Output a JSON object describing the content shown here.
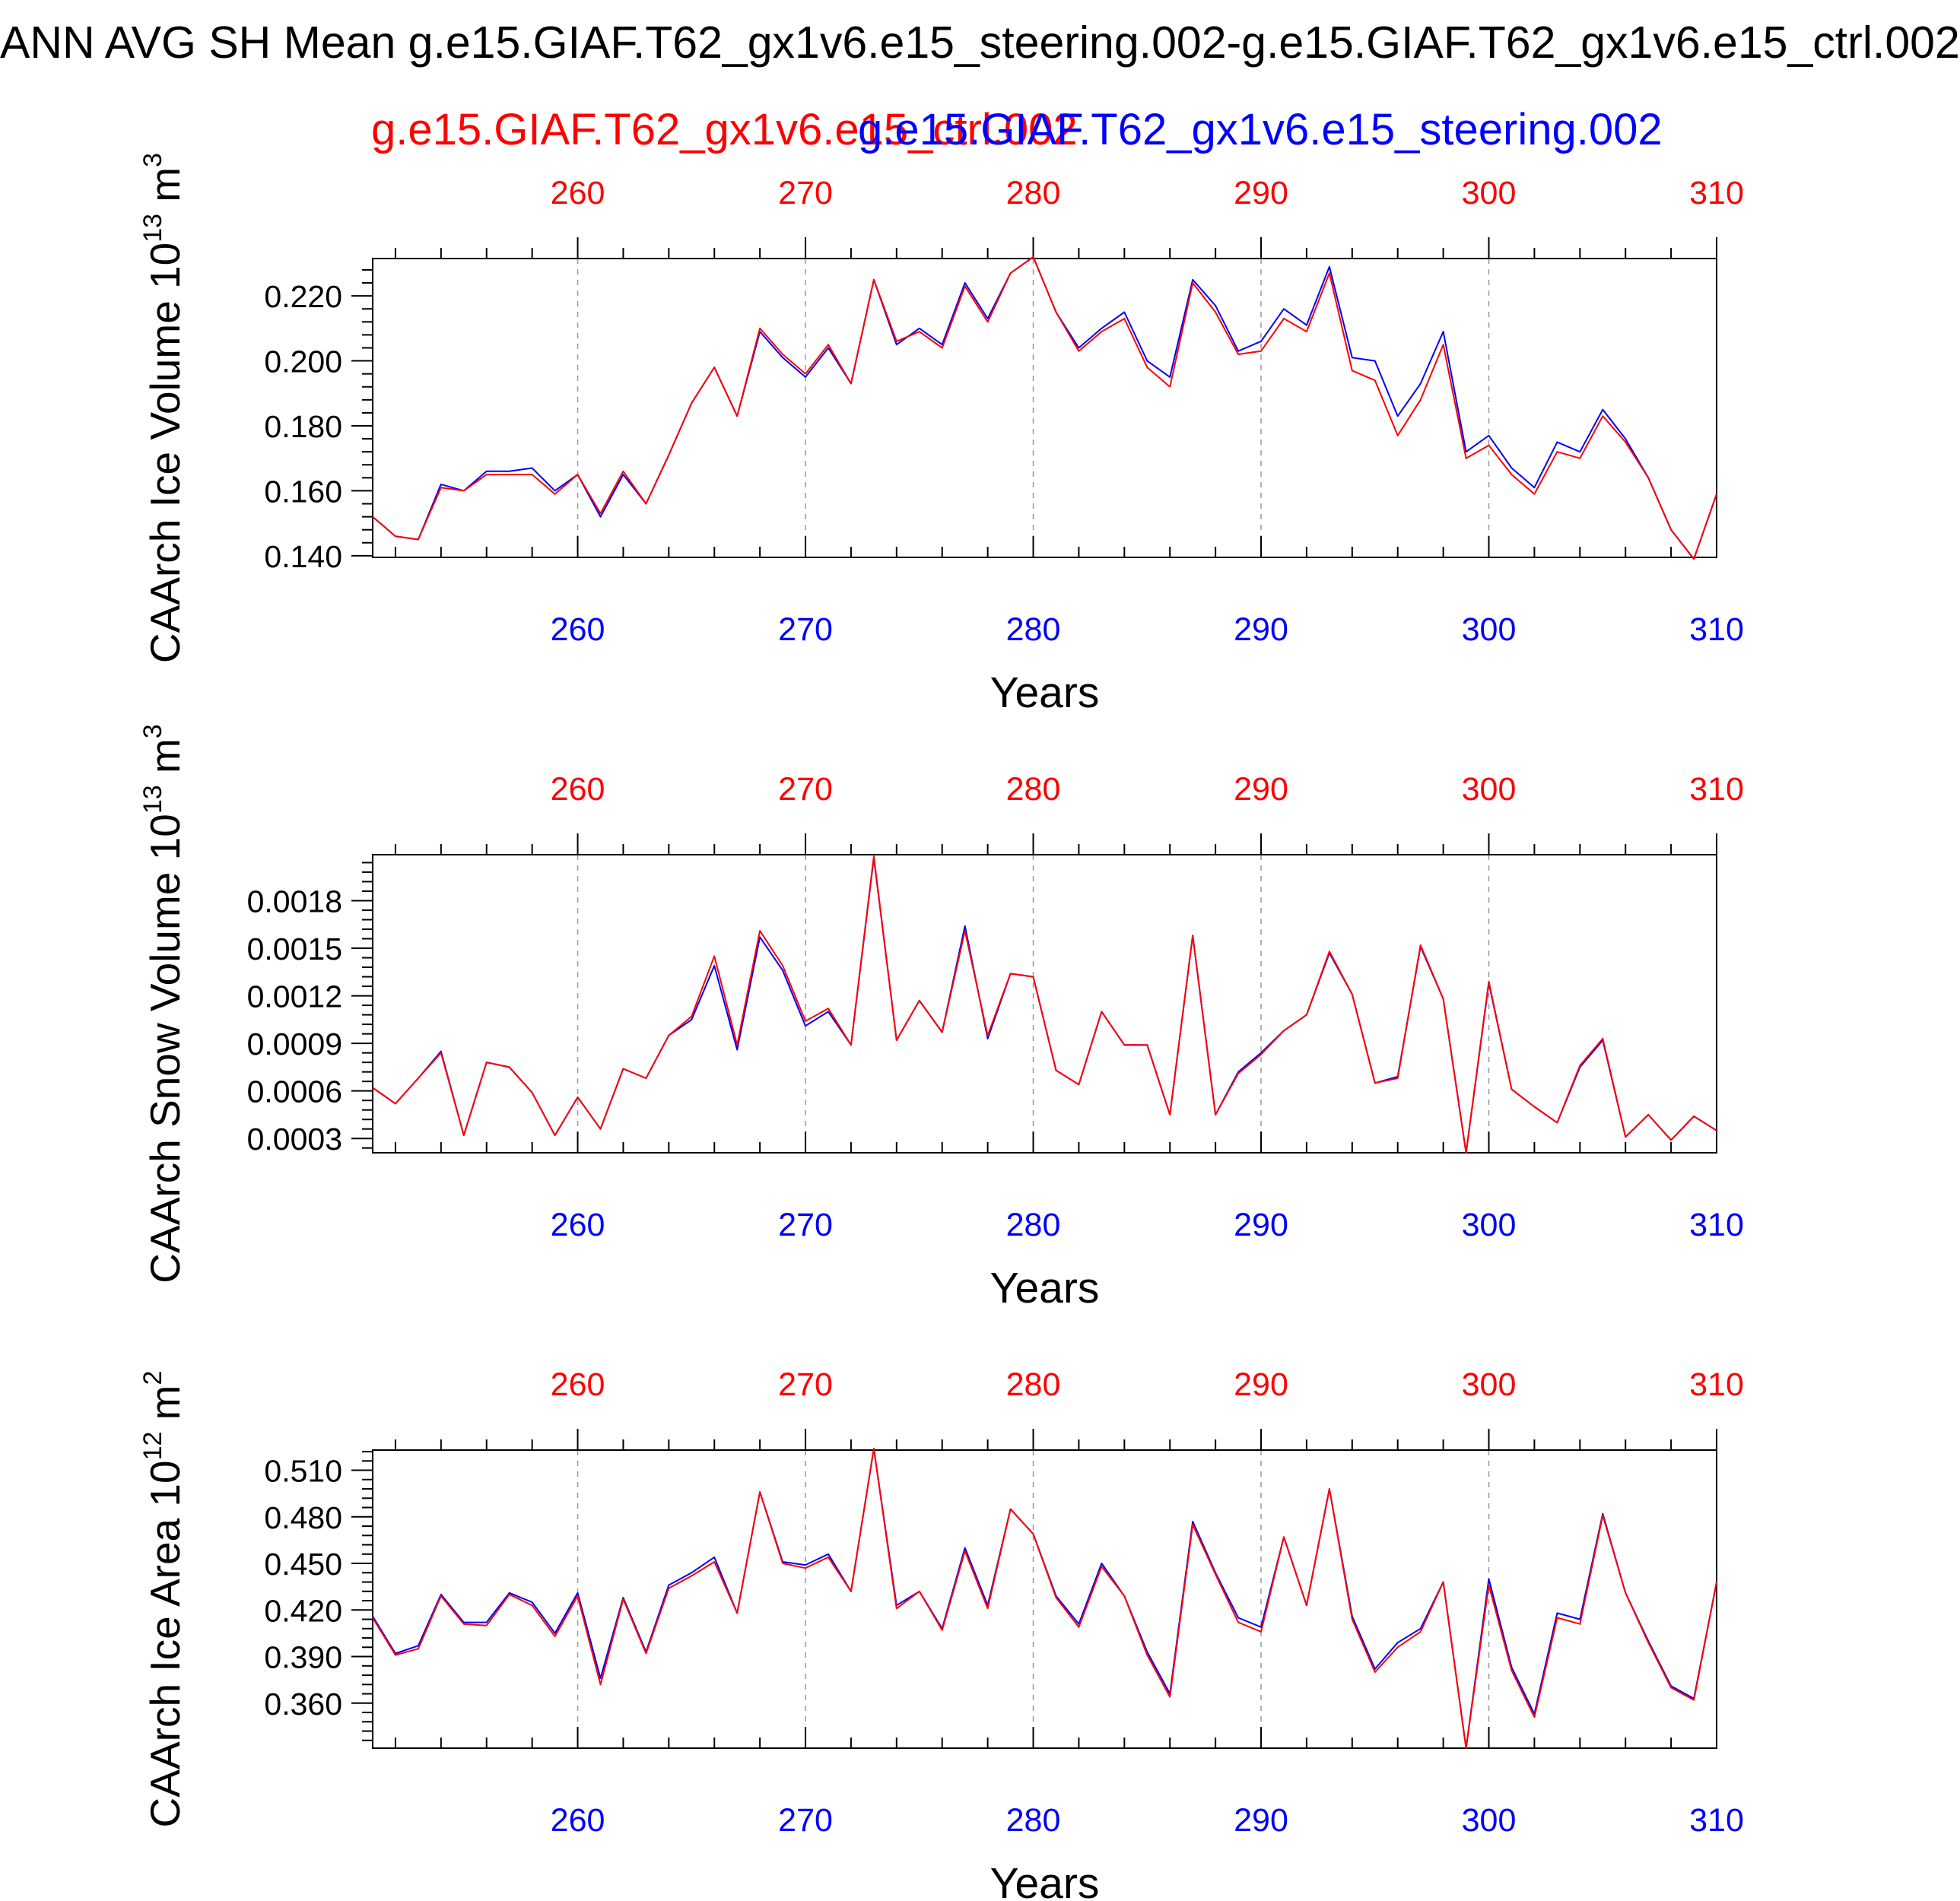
{
  "title": "ANN AVG SH Mean g.e15.GIAF.T62_gx1v6.e15_steering.002-g.e15.GIAF.T62_gx1v6.e15_ctrl.002",
  "legend": {
    "ctrl_label": "g.e15.GIAF.T62_gx1v6.e15_ctrl.002",
    "steering_label": "g.e15.GIAF.T62_gx1v6.e15_steering.002"
  },
  "colors": {
    "ctrl": "#ff0000",
    "steering": "#0000ff",
    "axis": "#000000",
    "grid": "#999999"
  },
  "chart_data": [
    {
      "type": "line",
      "title": "",
      "xlabel": "Years",
      "ylabel_main": "CAArch Ice Volume 10",
      "ylabel_exp": "13",
      "ylabel_unit": "m",
      "ylabel_unit_exp": "3",
      "xlim": [
        251,
        310
      ],
      "ylim": [
        0.1395,
        0.2315
      ],
      "x_ticks": [
        260,
        270,
        280,
        290,
        300,
        310
      ],
      "x_tick_labels": [
        "260",
        "270",
        "280",
        "290",
        "300",
        "310"
      ],
      "y_ticks": [
        0.14,
        0.16,
        0.18,
        0.2,
        0.22
      ],
      "y_tick_labels": [
        "0.140",
        "0.160",
        "0.180",
        "0.200",
        "0.220"
      ],
      "grid": true,
      "x": [
        251,
        252,
        253,
        254,
        255,
        256,
        257,
        258,
        259,
        260,
        261,
        262,
        263,
        264,
        265,
        266,
        267,
        268,
        269,
        270,
        271,
        272,
        273,
        274,
        275,
        276,
        277,
        278,
        279,
        280,
        281,
        282,
        283,
        284,
        285,
        286,
        287,
        288,
        289,
        290,
        291,
        292,
        293,
        294,
        295,
        296,
        297,
        298,
        299,
        300,
        301,
        302,
        303,
        304,
        305,
        306,
        307,
        308,
        309,
        310
      ],
      "series": [
        {
          "name": "g.e15.GIAF.T62_gx1v6.e15_ctrl.002",
          "color": "#ff0000",
          "values": [
            0.152,
            0.146,
            0.145,
            0.161,
            0.16,
            0.165,
            0.165,
            0.165,
            0.159,
            0.165,
            0.153,
            0.166,
            0.156,
            0.171,
            0.187,
            0.198,
            0.183,
            0.21,
            0.202,
            0.196,
            0.205,
            0.193,
            0.225,
            0.206,
            0.209,
            0.204,
            0.223,
            0.212,
            0.227,
            0.232,
            0.215,
            0.203,
            0.209,
            0.213,
            0.198,
            0.192,
            0.224,
            0.215,
            0.202,
            0.203,
            0.213,
            0.209,
            0.227,
            0.197,
            0.194,
            0.177,
            0.188,
            0.205,
            0.17,
            0.174,
            0.165,
            0.159,
            0.172,
            0.17,
            0.183,
            0.175,
            0.164,
            0.148,
            0.139,
            0.159
          ]
        },
        {
          "name": "g.e15.GIAF.T62_gx1v6.e15_steering.002",
          "color": "#0000ff",
          "values": [
            0.152,
            0.146,
            0.145,
            0.162,
            0.16,
            0.166,
            0.166,
            0.167,
            0.16,
            0.165,
            0.152,
            0.165,
            0.156,
            0.171,
            0.187,
            0.198,
            0.183,
            0.209,
            0.201,
            0.195,
            0.204,
            0.193,
            0.225,
            0.205,
            0.21,
            0.205,
            0.224,
            0.213,
            0.227,
            0.232,
            0.215,
            0.204,
            0.21,
            0.215,
            0.2,
            0.195,
            0.225,
            0.217,
            0.203,
            0.206,
            0.216,
            0.211,
            0.229,
            0.201,
            0.2,
            0.183,
            0.193,
            0.209,
            0.172,
            0.177,
            0.167,
            0.161,
            0.175,
            0.172,
            0.185,
            0.176,
            0.164,
            0.148,
            0.139,
            0.159
          ]
        }
      ]
    },
    {
      "type": "line",
      "title": "",
      "xlabel": "Years",
      "ylabel_main": "CAArch Snow Volume 10",
      "ylabel_exp": "13",
      "ylabel_unit": "m",
      "ylabel_unit_exp": "3",
      "xlim": [
        251,
        310
      ],
      "ylim": [
        0.00021,
        0.00209
      ],
      "x_ticks": [
        260,
        270,
        280,
        290,
        300,
        310
      ],
      "x_tick_labels": [
        "260",
        "270",
        "280",
        "290",
        "300",
        "310"
      ],
      "y_ticks": [
        0.0003,
        0.0006,
        0.0009,
        0.0012,
        0.0015,
        0.0018
      ],
      "y_tick_labels": [
        "0.0003",
        "0.0006",
        "0.0009",
        "0.0012",
        "0.0015",
        "0.0018"
      ],
      "grid": true,
      "x": [
        251,
        252,
        253,
        254,
        255,
        256,
        257,
        258,
        259,
        260,
        261,
        262,
        263,
        264,
        265,
        266,
        267,
        268,
        269,
        270,
        271,
        272,
        273,
        274,
        275,
        276,
        277,
        278,
        279,
        280,
        281,
        282,
        283,
        284,
        285,
        286,
        287,
        288,
        289,
        290,
        291,
        292,
        293,
        294,
        295,
        296,
        297,
        298,
        299,
        300,
        301,
        302,
        303,
        304,
        305,
        306,
        307,
        308,
        309,
        310
      ],
      "series": [
        {
          "name": "g.e15.GIAF.T62_gx1v6.e15_ctrl.002",
          "color": "#ff0000",
          "values": [
            0.00062,
            0.00052,
            0.00068,
            0.00084,
            0.00032,
            0.00078,
            0.00075,
            0.00059,
            0.00032,
            0.00056,
            0.00036,
            0.00074,
            0.00068,
            0.00095,
            0.00107,
            0.00145,
            0.00089,
            0.00161,
            0.00139,
            0.00104,
            0.00112,
            0.00089,
            0.00208,
            0.00092,
            0.00117,
            0.00097,
            0.00161,
            0.00095,
            0.00134,
            0.00132,
            0.00073,
            0.00064,
            0.0011,
            0.00089,
            0.00089,
            0.00045,
            0.00158,
            0.00045,
            0.00071,
            0.00083,
            0.00098,
            0.00108,
            0.00148,
            0.00121,
            0.00065,
            0.00068,
            0.00152,
            0.00118,
            0.00021,
            0.00129,
            0.00061,
            0.0005,
            0.0004,
            0.00076,
            0.00093,
            0.00031,
            0.00045,
            0.00029,
            0.00044,
            0.00035
          ]
        },
        {
          "name": "g.e15.GIAF.T62_gx1v6.e15_steering.002",
          "color": "#0000ff",
          "values": [
            0.00062,
            0.00052,
            0.00068,
            0.00085,
            0.00032,
            0.00078,
            0.00075,
            0.00059,
            0.00032,
            0.00056,
            0.00036,
            0.00074,
            0.00068,
            0.00095,
            0.00105,
            0.00139,
            0.00086,
            0.00157,
            0.00136,
            0.00101,
            0.0011,
            0.00089,
            0.00207,
            0.00092,
            0.00117,
            0.00097,
            0.00164,
            0.00093,
            0.00134,
            0.00132,
            0.00073,
            0.00064,
            0.0011,
            0.00089,
            0.00089,
            0.00045,
            0.00158,
            0.00045,
            0.00072,
            0.00084,
            0.00098,
            0.00108,
            0.00147,
            0.00121,
            0.00065,
            0.00069,
            0.00151,
            0.00118,
            0.00021,
            0.00128,
            0.00061,
            0.0005,
            0.0004,
            0.00075,
            0.00092,
            0.00031,
            0.00045,
            0.00029,
            0.00044,
            0.00035
          ]
        }
      ]
    },
    {
      "type": "line",
      "title": "",
      "xlabel": "Years",
      "ylabel_main": "CAArch Ice Area 10",
      "ylabel_exp": "12",
      "ylabel_unit": "m",
      "ylabel_unit_exp": "2",
      "xlim": [
        251,
        310
      ],
      "ylim": [
        0.331,
        0.523
      ],
      "x_ticks": [
        260,
        270,
        280,
        290,
        300,
        310
      ],
      "x_tick_labels": [
        "260",
        "270",
        "280",
        "290",
        "300",
        "310"
      ],
      "y_ticks": [
        0.36,
        0.39,
        0.42,
        0.45,
        0.48,
        0.51
      ],
      "y_tick_labels": [
        "0.360",
        "0.390",
        "0.420",
        "0.450",
        "0.480",
        "0.510"
      ],
      "grid": true,
      "x": [
        251,
        252,
        253,
        254,
        255,
        256,
        257,
        258,
        259,
        260,
        261,
        262,
        263,
        264,
        265,
        266,
        267,
        268,
        269,
        270,
        271,
        272,
        273,
        274,
        275,
        276,
        277,
        278,
        279,
        280,
        281,
        282,
        283,
        284,
        285,
        286,
        287,
        288,
        289,
        290,
        291,
        292,
        293,
        294,
        295,
        296,
        297,
        298,
        299,
        300,
        301,
        302,
        303,
        304,
        305,
        306,
        307,
        308,
        309,
        310
      ],
      "series": [
        {
          "name": "g.e15.GIAF.T62_gx1v6.e15_ctrl.002",
          "color": "#ff0000",
          "values": [
            0.415,
            0.391,
            0.395,
            0.429,
            0.411,
            0.41,
            0.43,
            0.423,
            0.403,
            0.429,
            0.372,
            0.427,
            0.392,
            0.434,
            0.442,
            0.451,
            0.418,
            0.496,
            0.45,
            0.447,
            0.454,
            0.432,
            0.524,
            0.421,
            0.432,
            0.407,
            0.458,
            0.421,
            0.485,
            0.469,
            0.428,
            0.409,
            0.448,
            0.429,
            0.391,
            0.364,
            0.475,
            0.443,
            0.412,
            0.406,
            0.467,
            0.423,
            0.498,
            0.414,
            0.38,
            0.396,
            0.406,
            0.438,
            0.331,
            0.436,
            0.381,
            0.351,
            0.415,
            0.411,
            0.481,
            0.431,
            0.399,
            0.37,
            0.362,
            0.438
          ]
        },
        {
          "name": "g.e15.GIAF.T62_gx1v6.e15_steering.002",
          "color": "#0000ff",
          "values": [
            0.416,
            0.392,
            0.397,
            0.43,
            0.412,
            0.412,
            0.431,
            0.425,
            0.405,
            0.431,
            0.376,
            0.428,
            0.393,
            0.436,
            0.444,
            0.454,
            0.418,
            0.496,
            0.451,
            0.449,
            0.456,
            0.432,
            0.524,
            0.423,
            0.432,
            0.408,
            0.46,
            0.423,
            0.485,
            0.469,
            0.429,
            0.411,
            0.45,
            0.429,
            0.393,
            0.366,
            0.477,
            0.444,
            0.415,
            0.409,
            0.467,
            0.423,
            0.498,
            0.416,
            0.382,
            0.399,
            0.408,
            0.438,
            0.331,
            0.44,
            0.383,
            0.353,
            0.418,
            0.414,
            0.482,
            0.431,
            0.4,
            0.371,
            0.363,
            0.438
          ]
        }
      ]
    }
  ]
}
